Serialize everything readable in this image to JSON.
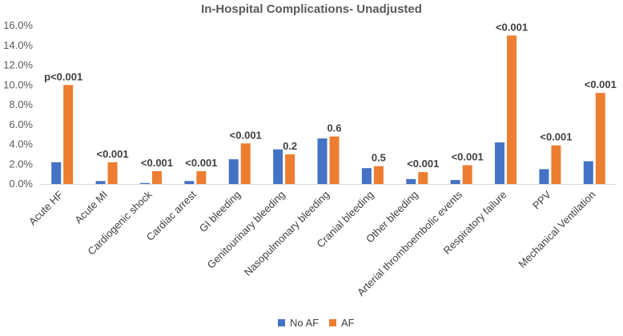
{
  "chart_data": {
    "type": "bar",
    "title": "In-Hospital Complications- Unadjusted",
    "xlabel": "",
    "ylabel": "",
    "ylim": [
      0,
      16
    ],
    "yticks": [
      "0.0%",
      "2.0%",
      "4.0%",
      "6.0%",
      "8.0%",
      "10.0%",
      "12.0%",
      "14.0%",
      "16.0%"
    ],
    "grid": false,
    "legend_position": "bottom",
    "categories": [
      "Acute HF",
      "Acute MI",
      "Cardiogenic shock",
      "Cardiac arrest",
      "GI bleeding",
      "Genitourinary bleeding",
      "Nasopulmonary bleeding",
      "Cranial bleeding",
      "Other bleeding",
      "Arterial thromboembolic events",
      "Respiratory failure",
      "PPV",
      "Mechanical Ventilation"
    ],
    "series": [
      {
        "name": "No AF",
        "color": "#4472C4",
        "values": [
          2.2,
          0.3,
          0.1,
          0.3,
          2.5,
          3.5,
          4.6,
          1.6,
          0.5,
          0.4,
          4.2,
          1.5,
          2.3
        ]
      },
      {
        "name": "AF",
        "color": "#ED7D31",
        "values": [
          10.0,
          2.2,
          1.3,
          1.3,
          4.1,
          3.0,
          4.8,
          1.8,
          1.2,
          1.9,
          15.0,
          3.9,
          9.2
        ]
      }
    ],
    "annotations": [
      "p<0.001",
      "<0.001",
      "<0.001",
      "<0.001",
      "<0.001",
      "0.2",
      "0.6",
      "0.5",
      "<0.001",
      "<0.001",
      "<0.001",
      "<0.001",
      "<0.001"
    ]
  }
}
